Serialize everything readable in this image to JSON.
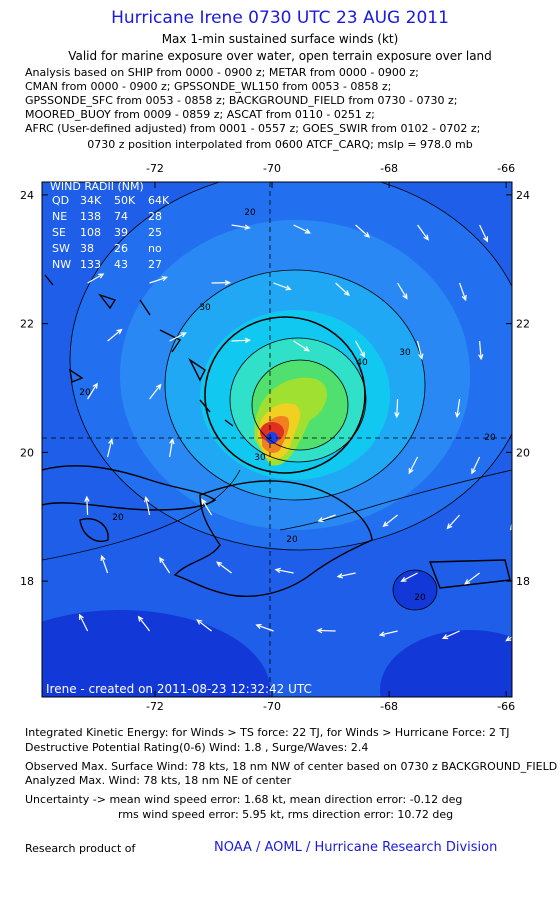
{
  "header": {
    "title": "Hurricane Irene 0730 UTC 23 AUG 2011",
    "subtitle": "Max 1-min sustained surface winds (kt)",
    "validity": "Valid for marine exposure over water, open terrain exposure over land",
    "analysis_lines": [
      "Analysis based on SHIP from 0000 - 0900 z; METAR from 0000 - 0900 z;",
      "CMAN from 0000 - 0900 z; GPSSONDE_WL150 from 0053 - 0858 z;",
      "GPSSONDE_SFC from 0053 - 0858 z; BACKGROUND_FIELD from 0730 - 0730 z;",
      "MOORED_BUOY from 0009 - 0859 z; ASCAT from 0110 - 0251 z;",
      "AFRC (User-defined adjusted) from 0001 - 0557 z; GOES_SWIR from 0102 - 0702 z;"
    ],
    "position_note": "0730 z position interpolated from 0600 ATCF_CARQ; mslp = 978.0 mb"
  },
  "map": {
    "lon_range": [
      -73.93,
      -65.9
    ],
    "lat_range": [
      16.2,
      24.2
    ],
    "lon_ticks": [
      -72,
      -70,
      -68,
      -66
    ],
    "lat_ticks": [
      24,
      22,
      20,
      18
    ],
    "wind_radii": {
      "title": "WIND RADII (NM)",
      "columns": [
        "QD",
        "34K",
        "50K",
        "64K"
      ],
      "rows": [
        [
          "NE",
          138,
          74,
          28
        ],
        [
          "SE",
          108,
          39,
          25
        ],
        [
          "SW",
          38,
          26,
          "no"
        ],
        [
          "NW",
          133,
          43,
          27
        ]
      ]
    },
    "contour_labels": [
      20,
      30,
      20,
      30,
      40,
      20,
      20,
      30,
      20,
      20
    ],
    "credit": "Irene - created on 2011-08-23 12:32:42 UTC"
  },
  "footer": {
    "lines": [
      "Integrated Kinetic Energy: for Winds > TS force: 22 TJ, for Winds > Hurricane Force: 2 TJ",
      "Destructive Potential Rating(0-6) Wind: 1.8 , Surge/Waves: 2.4",
      "Observed Max. Surface Wind: 78 kts, 18 nm NW of center based on 0730 z BACKGROUND_FIELD",
      "Analyzed Max. Wind: 78 kts, 18 nm NE of center",
      "Uncertainty -> mean wind speed error: 1.68 kt, mean direction error: -0.12 deg",
      "rms wind speed error: 5.95 kt, rms direction error: 10.72 deg"
    ],
    "research_label": "Research product of",
    "organization": "NOAA / AOML / Hurricane Research Division"
  }
}
